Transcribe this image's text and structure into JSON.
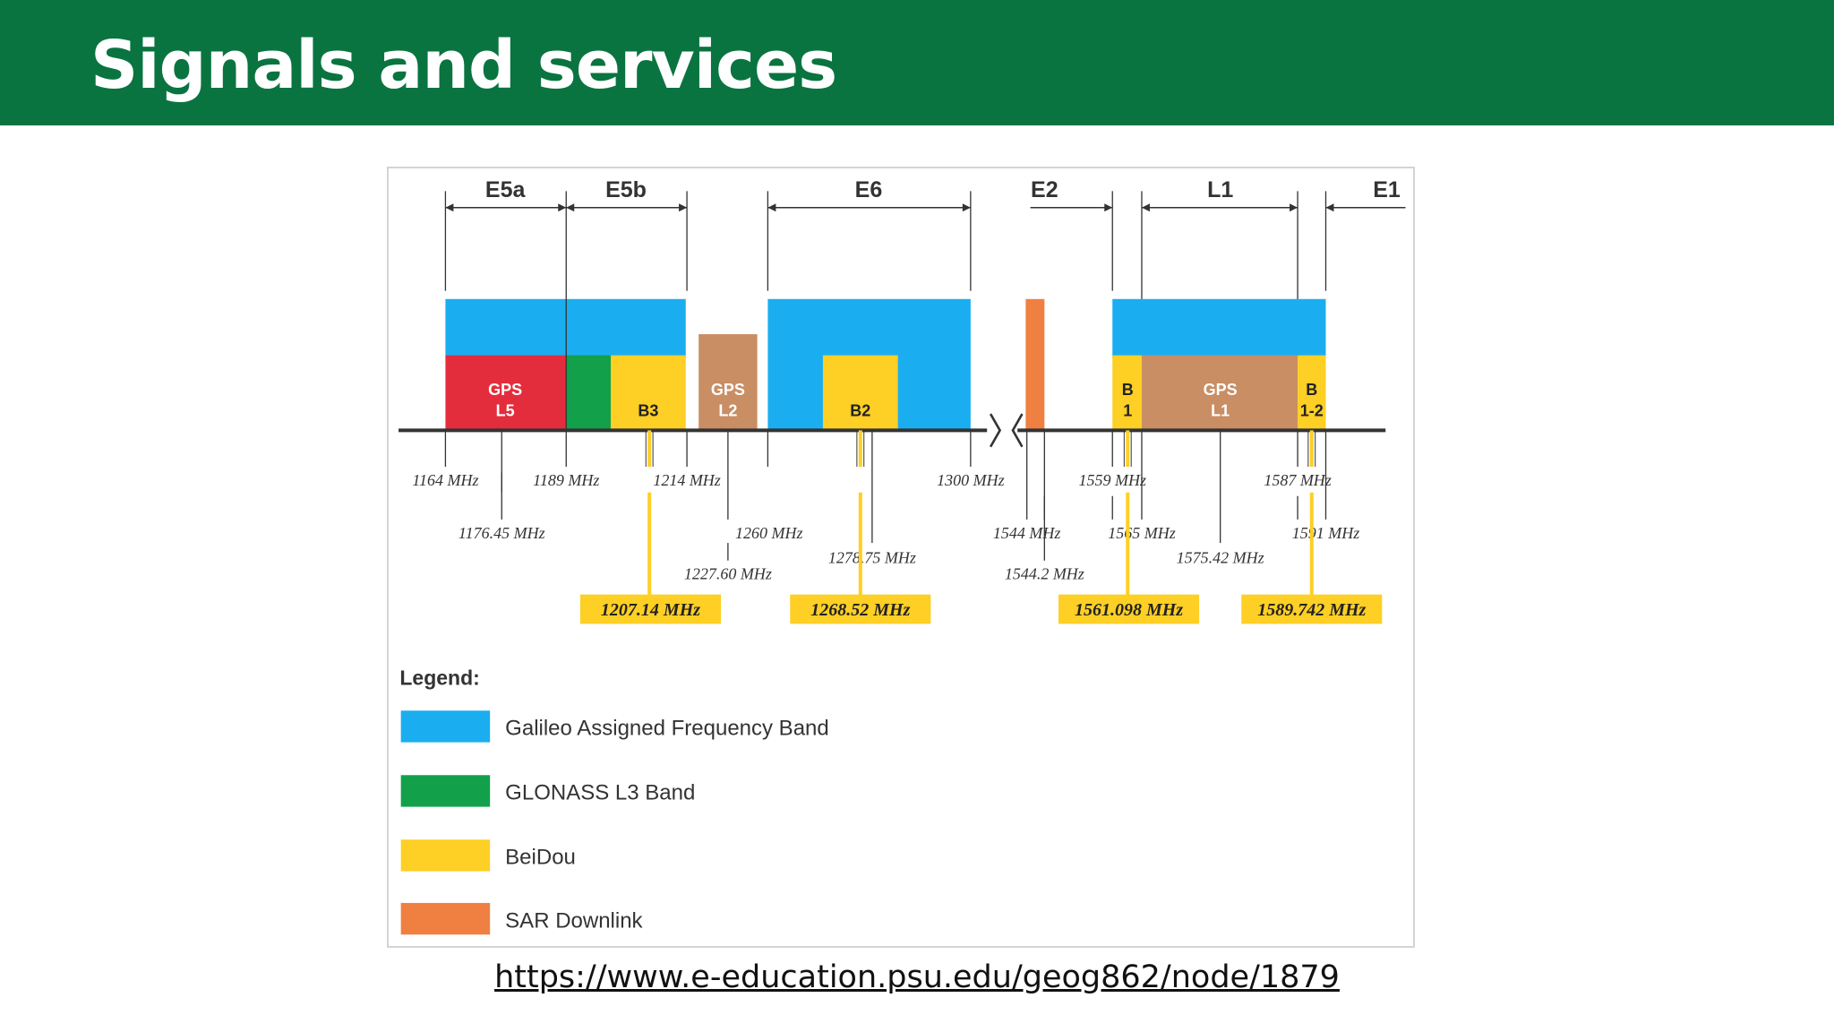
{
  "slide": {
    "title": "Signals and services"
  },
  "source_link": "https://www.e-education.psu.edu/geog862/node/1879",
  "colors": {
    "title_bar": "#0a7440",
    "galileo": "#1aaef0",
    "glonass": "#12a04b",
    "beidou": "#fecf24",
    "gps": "#c98e64",
    "gps_l5": "#e42d3c",
    "sar": "#ef8042",
    "axis": "#333333"
  },
  "bands": [
    {
      "label": "E5a",
      "from": "1164",
      "to": "1189"
    },
    {
      "label": "E5b",
      "from": "1189",
      "to": "1214"
    },
    {
      "label": "E6",
      "from": "1260",
      "to": "1300"
    },
    {
      "label": "E2",
      "from": "1559",
      "to": ""
    },
    {
      "label": "L1",
      "from": "1565",
      "to": "1587"
    },
    {
      "label": "E1",
      "from": "",
      "to": "1591"
    }
  ],
  "blocks": [
    {
      "label": "GPS L5",
      "lines": [
        "GPS",
        "L5"
      ],
      "system": "gps_l5"
    },
    {
      "label": "",
      "lines": [],
      "system": "glonass"
    },
    {
      "label": "B3",
      "lines": [
        "B3"
      ],
      "system": "beidou"
    },
    {
      "label": "GPS L2",
      "lines": [
        "GPS",
        "L2"
      ],
      "system": "gps"
    },
    {
      "label": "B2",
      "lines": [
        "B2"
      ],
      "system": "beidou"
    },
    {
      "label": "",
      "lines": [],
      "system": "sar"
    },
    {
      "label": "B 1",
      "lines": [
        "B",
        "1"
      ],
      "system": "beidou"
    },
    {
      "label": "GPS L1",
      "lines": [
        "GPS",
        "L1"
      ],
      "system": "gps"
    },
    {
      "label": "B 1-2",
      "lines": [
        "B",
        "1-2"
      ],
      "system": "beidou"
    }
  ],
  "frequency_labels": [
    "1164 MHz",
    "1189 MHz",
    "1214 MHz",
    "1300 MHz",
    "1559 MHz",
    "1587 MHz",
    "1176.45 MHz",
    "1260 MHz",
    "1544 MHz",
    "1565 MHz",
    "1591 MHz",
    "1278.75 MHz",
    "1575.42 MHz",
    "1227.60 MHz",
    "1544.2 MHz"
  ],
  "beidou_frequencies": [
    "1207.14 MHz",
    "1268.52 MHz",
    "1561.098 MHz",
    "1589.742 MHz"
  ],
  "legend": {
    "title": "Legend:",
    "items": [
      {
        "label": "Galileo Assigned Frequency Band",
        "system": "galileo"
      },
      {
        "label": "GLONASS L3 Band",
        "system": "glonass"
      },
      {
        "label": "BeiDou",
        "system": "beidou"
      },
      {
        "label": "SAR Downlink",
        "system": "sar"
      }
    ]
  }
}
